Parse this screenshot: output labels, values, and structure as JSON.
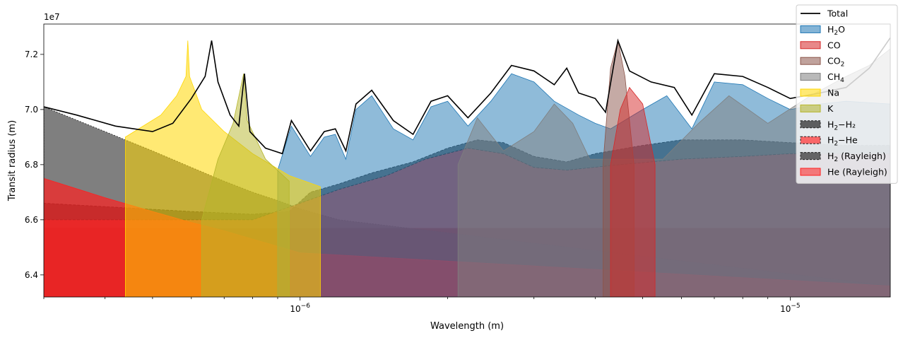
{
  "chart_data": {
    "type": "area",
    "title": "",
    "xlabel": "Wavelength (m)",
    "ylabel": "Transit radius (m)",
    "y_offset_label": "1e7",
    "xscale": "log",
    "xlim": [
      3e-07,
      1.6e-05
    ],
    "ylim": [
      6.32,
      7.31
    ],
    "y_units_note": "values in units of 1e7 m",
    "xticks_major": [
      1e-06,
      1e-05
    ],
    "xtick_labels": [
      "10",
      "10"
    ],
    "xtick_exponents": [
      "−6",
      "−5"
    ],
    "yticks": [
      6.4,
      6.6,
      6.8,
      7.0,
      7.2
    ],
    "ytick_labels": [
      "6.4",
      "6.6",
      "6.8",
      "7.0",
      "7.2"
    ],
    "grid": false,
    "legend_position": "top-right",
    "legend": [
      {
        "key": "total",
        "label": "Total",
        "sub": "",
        "tail": ""
      },
      {
        "key": "h2o",
        "label": "H",
        "sub": "2",
        "tail": "O"
      },
      {
        "key": "co",
        "label": "CO",
        "sub": "",
        "tail": ""
      },
      {
        "key": "co2",
        "label": "CO",
        "sub": "2",
        "tail": ""
      },
      {
        "key": "ch4",
        "label": "CH",
        "sub": "4",
        "tail": ""
      },
      {
        "key": "na",
        "label": "Na",
        "sub": "",
        "tail": ""
      },
      {
        "key": "k",
        "label": "K",
        "sub": "",
        "tail": ""
      },
      {
        "key": "h2h2",
        "label": "H",
        "sub": "2",
        "tail": "−H₂"
      },
      {
        "key": "h2he",
        "label": "H",
        "sub": "2",
        "tail": "−He"
      },
      {
        "key": "h2ray",
        "label": "H",
        "sub": "2",
        "tail": " (Rayleigh)"
      },
      {
        "key": "heray",
        "label": "He (Rayleigh)",
        "sub": "",
        "tail": ""
      }
    ],
    "colors": {
      "total": "#000000",
      "h2o": "#1f77b4",
      "co": "#d62728",
      "co2": "#8c564b",
      "ch4": "#7f7f7f",
      "na": "#ffd700",
      "k": "#b5b52a",
      "h2h2": "#2f2f2f",
      "h2he": "#ff3b3b",
      "h2ray": "#3a3a3a",
      "heray": "#ff2020",
      "deep_red": "#aa0000"
    },
    "series": [
      {
        "key": "total",
        "points": [
          [
            3e-07,
            7.01
          ],
          [
            3.5e-07,
            6.98
          ],
          [
            4.2e-07,
            6.94
          ],
          [
            5e-07,
            6.92
          ],
          [
            5.5e-07,
            6.95
          ],
          [
            6e-07,
            7.04
          ],
          [
            6.4e-07,
            7.12
          ],
          [
            6.6e-07,
            7.25
          ],
          [
            6.8e-07,
            7.1
          ],
          [
            7.2e-07,
            6.98
          ],
          [
            7.5e-07,
            6.94
          ],
          [
            7.7e-07,
            7.13
          ],
          [
            7.9e-07,
            6.92
          ],
          [
            8.5e-07,
            6.86
          ],
          [
            9.2e-07,
            6.84
          ],
          [
            9.6e-07,
            6.96
          ],
          [
            1.05e-06,
            6.85
          ],
          [
            1.12e-06,
            6.92
          ],
          [
            1.18e-06,
            6.93
          ],
          [
            1.24e-06,
            6.85
          ],
          [
            1.3e-06,
            7.02
          ],
          [
            1.4e-06,
            7.07
          ],
          [
            1.55e-06,
            6.96
          ],
          [
            1.7e-06,
            6.91
          ],
          [
            1.85e-06,
            7.03
          ],
          [
            2e-06,
            7.05
          ],
          [
            2.2e-06,
            6.97
          ],
          [
            2.45e-06,
            7.06
          ],
          [
            2.7e-06,
            7.16
          ],
          [
            3e-06,
            7.14
          ],
          [
            3.3e-06,
            7.09
          ],
          [
            3.5e-06,
            7.15
          ],
          [
            3.7e-06,
            7.06
          ],
          [
            4e-06,
            7.04
          ],
          [
            4.2e-06,
            6.99
          ],
          [
            4.45e-06,
            7.25
          ],
          [
            4.7e-06,
            7.14
          ],
          [
            5.2e-06,
            7.1
          ],
          [
            5.8e-06,
            7.08
          ],
          [
            6.3e-06,
            6.98
          ],
          [
            7e-06,
            7.13
          ],
          [
            8e-06,
            7.12
          ],
          [
            9e-06,
            7.08
          ],
          [
            1e-05,
            7.04
          ],
          [
            1.15e-05,
            7.06
          ],
          [
            1.3e-05,
            7.08
          ],
          [
            1.45e-05,
            7.15
          ],
          [
            1.6e-05,
            7.26
          ]
        ]
      },
      {
        "key": "h2o",
        "points": [
          [
            9e-07,
            6.78
          ],
          [
            9.6e-07,
            6.94
          ],
          [
            1.05e-06,
            6.83
          ],
          [
            1.12e-06,
            6.9
          ],
          [
            1.18e-06,
            6.91
          ],
          [
            1.24e-06,
            6.82
          ],
          [
            1.3e-06,
            7.0
          ],
          [
            1.4e-06,
            7.05
          ],
          [
            1.55e-06,
            6.93
          ],
          [
            1.7e-06,
            6.89
          ],
          [
            1.85e-06,
            7.01
          ],
          [
            2e-06,
            7.03
          ],
          [
            2.2e-06,
            6.94
          ],
          [
            2.45e-06,
            7.03
          ],
          [
            2.7e-06,
            7.13
          ],
          [
            3e-06,
            7.1
          ],
          [
            3.3e-06,
            7.03
          ],
          [
            3.7e-06,
            6.98
          ],
          [
            4e-06,
            6.95
          ],
          [
            4.3e-06,
            6.93
          ],
          [
            5e-06,
            7.0
          ],
          [
            5.6e-06,
            7.05
          ],
          [
            6.3e-06,
            6.93
          ],
          [
            7e-06,
            7.1
          ],
          [
            8e-06,
            7.09
          ],
          [
            9e-06,
            7.04
          ],
          [
            1e-05,
            7.0
          ],
          [
            1.15e-05,
            7.02
          ],
          [
            1.3e-05,
            7.03
          ],
          [
            1.6e-05,
            7.02
          ]
        ]
      },
      {
        "key": "co",
        "points": [
          [
            4.3e-06,
            6.8
          ],
          [
            4.5e-06,
            7.0
          ],
          [
            4.7e-06,
            7.08
          ],
          [
            5e-06,
            7.02
          ],
          [
            5.3e-06,
            6.8
          ]
        ]
      },
      {
        "key": "co2",
        "points": [
          [
            4.15e-06,
            6.8
          ],
          [
            4.3e-06,
            7.15
          ],
          [
            4.45e-06,
            7.25
          ],
          [
            4.6e-06,
            7.12
          ],
          [
            4.8e-06,
            6.8
          ]
        ]
      },
      {
        "key": "ch4",
        "points": [
          [
            2.1e-06,
            6.8
          ],
          [
            2.3e-06,
            6.97
          ],
          [
            2.6e-06,
            6.85
          ],
          [
            3e-06,
            6.92
          ],
          [
            3.3e-06,
            7.02
          ],
          [
            3.6e-06,
            6.95
          ],
          [
            3.9e-06,
            6.82
          ],
          [
            5.5e-06,
            6.82
          ],
          [
            6.5e-06,
            6.95
          ],
          [
            7.5e-06,
            7.05
          ],
          [
            9e-06,
            6.95
          ],
          [
            1.1e-05,
            7.05
          ],
          [
            1.3e-05,
            7.12
          ],
          [
            1.45e-05,
            7.16
          ],
          [
            1.6e-05,
            7.22
          ]
        ]
      },
      {
        "key": "na",
        "points": [
          [
            4.4e-07,
            6.9
          ],
          [
            5.2e-07,
            6.98
          ],
          [
            5.6e-07,
            7.05
          ],
          [
            5.85e-07,
            7.12
          ],
          [
            5.9e-07,
            7.25
          ],
          [
            5.95e-07,
            7.12
          ],
          [
            6.3e-07,
            7.0
          ],
          [
            7e-07,
            6.92
          ],
          [
            8e-07,
            6.84
          ],
          [
            9.5e-07,
            6.76
          ],
          [
            1.1e-06,
            6.72
          ]
        ]
      },
      {
        "key": "k",
        "points": [
          [
            6.3e-07,
            6.6
          ],
          [
            6.8e-07,
            6.82
          ],
          [
            7.3e-07,
            6.95
          ],
          [
            7.67e-07,
            7.13
          ],
          [
            7.8e-07,
            6.96
          ],
          [
            8.5e-07,
            6.82
          ],
          [
            9.5e-07,
            6.74
          ]
        ]
      },
      {
        "key": "h2h2",
        "points": [
          [
            3e-07,
            6.66
          ],
          [
            6e-07,
            6.63
          ],
          [
            8e-07,
            6.62
          ],
          [
            9.5e-07,
            6.63
          ],
          [
            1.05e-06,
            6.7
          ],
          [
            1.2e-06,
            6.73
          ],
          [
            1.4e-06,
            6.77
          ],
          [
            1.7e-06,
            6.81
          ],
          [
            2e-06,
            6.86
          ],
          [
            2.3e-06,
            6.89
          ],
          [
            2.6e-06,
            6.88
          ],
          [
            3e-06,
            6.83
          ],
          [
            3.5e-06,
            6.81
          ],
          [
            4e-06,
            6.84
          ],
          [
            5e-06,
            6.87
          ],
          [
            6e-06,
            6.89
          ],
          [
            8e-06,
            6.89
          ],
          [
            1e-05,
            6.88
          ],
          [
            1.3e-05,
            6.87
          ],
          [
            1.6e-05,
            6.87
          ]
        ]
      },
      {
        "key": "h2he",
        "points": [
          [
            3e-07,
            6.6
          ],
          [
            8e-07,
            6.6
          ],
          [
            1e-06,
            6.66
          ],
          [
            1.2e-06,
            6.71
          ],
          [
            1.5e-06,
            6.76
          ],
          [
            1.8e-06,
            6.82
          ],
          [
            2.2e-06,
            6.86
          ],
          [
            2.6e-06,
            6.84
          ],
          [
            3e-06,
            6.79
          ],
          [
            3.5e-06,
            6.78
          ],
          [
            4.5e-06,
            6.8
          ],
          [
            6e-06,
            6.82
          ],
          [
            8e-06,
            6.83
          ],
          [
            1e-05,
            6.84
          ],
          [
            1.3e-05,
            6.84
          ],
          [
            1.6e-05,
            6.84
          ]
        ]
      },
      {
        "key": "h2ray",
        "points": [
          [
            3e-07,
            7.01
          ],
          [
            4e-07,
            6.92
          ],
          [
            5e-07,
            6.85
          ],
          [
            6e-07,
            6.79
          ],
          [
            7e-07,
            6.74
          ],
          [
            8e-07,
            6.7
          ],
          [
            9e-07,
            6.67
          ],
          [
            1e-06,
            6.64
          ],
          [
            1.2e-06,
            6.6
          ],
          [
            1.6e-05,
            6.36
          ]
        ]
      },
      {
        "key": "heray",
        "points": [
          [
            3e-07,
            6.75
          ],
          [
            4e-07,
            6.68
          ],
          [
            5e-07,
            6.63
          ],
          [
            6e-07,
            6.59
          ],
          [
            7e-07,
            6.56
          ],
          [
            8e-07,
            6.53
          ],
          [
            1e-06,
            6.48
          ],
          [
            1.6e-05,
            6.36
          ]
        ]
      }
    ]
  }
}
